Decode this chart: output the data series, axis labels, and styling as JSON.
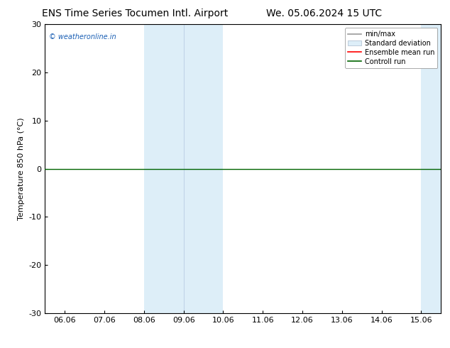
{
  "title_left": "ENS Time Series Tocumen Intl. Airport",
  "title_right": "We. 05.06.2024 15 UTC",
  "ylabel": "Temperature 850 hPa (°C)",
  "watermark": "© weatheronline.in",
  "ylim": [
    -30,
    30
  ],
  "yticks": [
    -30,
    -20,
    -10,
    0,
    10,
    20,
    30
  ],
  "xtick_labels": [
    "06.06",
    "07.06",
    "08.06",
    "09.06",
    "10.06",
    "11.06",
    "12.06",
    "13.06",
    "14.06",
    "15.06"
  ],
  "shade_color": "#ddeef8",
  "shade_regions": [
    [
      2.0,
      3.0
    ],
    [
      3.0,
      4.0
    ],
    [
      9.0,
      9.5
    ],
    [
      9.5,
      10.0
    ]
  ],
  "control_run_y": 0,
  "control_run_color": "#006400",
  "control_run_lw": 1.0,
  "ensemble_mean_color": "#ff0000",
  "minmax_color": "#999999",
  "background_color": "#ffffff",
  "plot_bg_color": "#ffffff",
  "border_color": "#000000",
  "title_fontsize": 10,
  "tick_fontsize": 8,
  "ylabel_fontsize": 8,
  "watermark_fontsize": 7,
  "watermark_color": "#1a5fb4",
  "legend_fontsize": 7,
  "xlim_left": -0.5,
  "xlim_right": 9.5
}
